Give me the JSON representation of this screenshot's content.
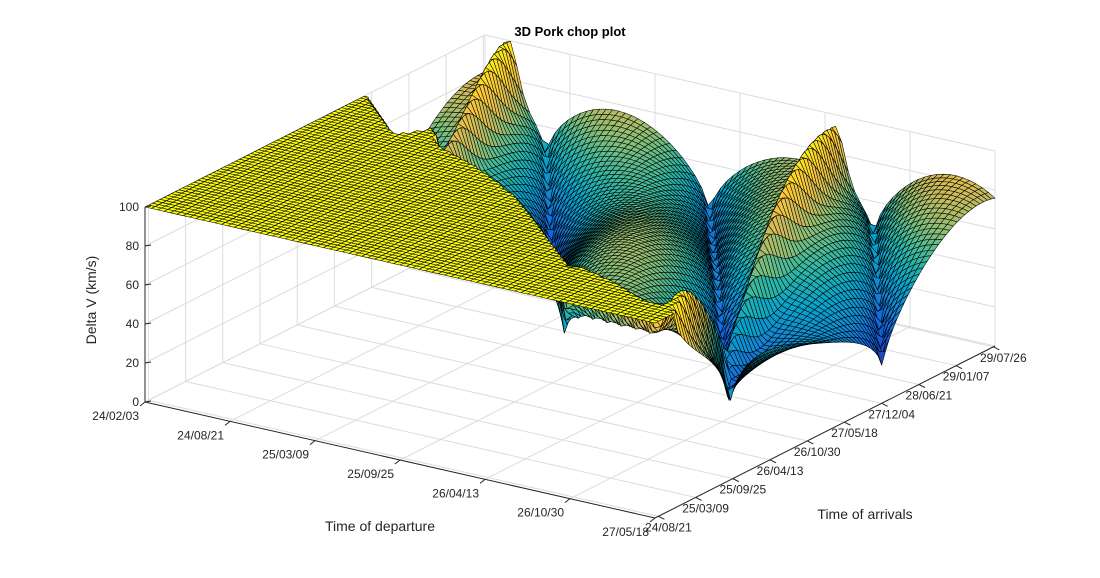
{
  "figure": {
    "background": "#ffffff"
  },
  "chart_data": {
    "type": "surface",
    "title": "3D Pork chop plot",
    "xlabel": "Time of departure",
    "ylabel": "Time of arrivals",
    "zlabel": "Delta V (km/s)",
    "zlim": [
      0,
      100
    ],
    "z_ticks": [
      "0",
      "20",
      "40",
      "60",
      "80",
      "100"
    ],
    "departure_ticks": [
      "24/02/03",
      "24/08/21",
      "25/03/09",
      "25/09/25",
      "26/04/13",
      "26/10/30",
      "27/05/18"
    ],
    "arrival_ticks": [
      "24/08/21",
      "25/03/09",
      "25/09/25",
      "26/04/13",
      "26/10/30",
      "27/05/18",
      "27/12/04",
      "28/06/21",
      "29/01/07",
      "29/07/26"
    ],
    "grid": true,
    "box": "open",
    "colormap": "parula",
    "colormap_colors": [
      "#352a87",
      "#0f5cdd",
      "#1481d6",
      "#06a4ca",
      "#2eb7a4",
      "#87bf77",
      "#d1bb59",
      "#fec832",
      "#f9fb0e"
    ],
    "surface_grid": {
      "departure_points": 80,
      "arrival_points": 90
    },
    "z_clip": 100
  }
}
